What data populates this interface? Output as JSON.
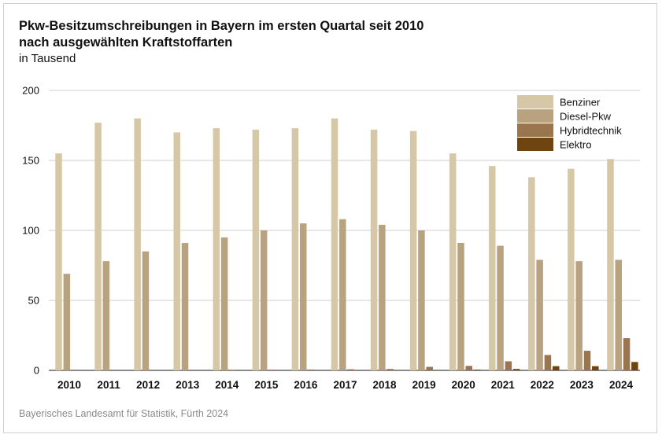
{
  "title_line1": "Pkw-Besitzumschreibungen in Bayern im ersten Quartal seit 2010",
  "title_line2": "nach ausgewählten Kraftstoffarten",
  "unit": "in Tausend",
  "source": "Bayerisches Landesamt für Statistik, Fürth 2024",
  "chart_data": {
    "type": "bar",
    "title": "Pkw-Besitzumschreibungen in Bayern im ersten Quartal seit 2010 nach ausgewählten Kraftstoffarten",
    "ylabel": "in Tausend",
    "xlabel": "",
    "ylim": [
      0,
      200
    ],
    "yticks": [
      0,
      50,
      100,
      150,
      200
    ],
    "grid": true,
    "legend": "top-right",
    "categories": [
      "2010",
      "2011",
      "2012",
      "2013",
      "2014",
      "2015",
      "2016",
      "2017",
      "2018",
      "2019",
      "2020",
      "2021",
      "2022",
      "2023",
      "2024"
    ],
    "series": [
      {
        "name": "Benziner",
        "color": "#d6c7a7",
        "values": [
          155,
          177,
          180,
          170,
          173,
          172,
          173,
          180,
          172,
          171,
          155,
          146,
          138,
          144,
          151
        ]
      },
      {
        "name": "Diesel-Pkw",
        "color": "#b9a27f",
        "values": [
          69,
          78,
          85,
          91,
          95,
          100,
          105,
          108,
          104,
          100,
          91,
          89,
          79,
          78,
          79
        ]
      },
      {
        "name": "Hybridtechnik",
        "color": "#9a7650",
        "values": [
          0,
          0,
          0,
          0,
          0.4,
          0.5,
          0.6,
          0.8,
          1,
          2.5,
          3.2,
          6.5,
          11,
          14,
          23
        ]
      },
      {
        "name": "Elektro",
        "color": "#6e4410",
        "values": [
          0,
          0,
          0,
          0,
          0,
          0,
          0,
          0,
          0.2,
          0.3,
          0.5,
          1,
          3,
          3,
          6
        ]
      }
    ]
  }
}
